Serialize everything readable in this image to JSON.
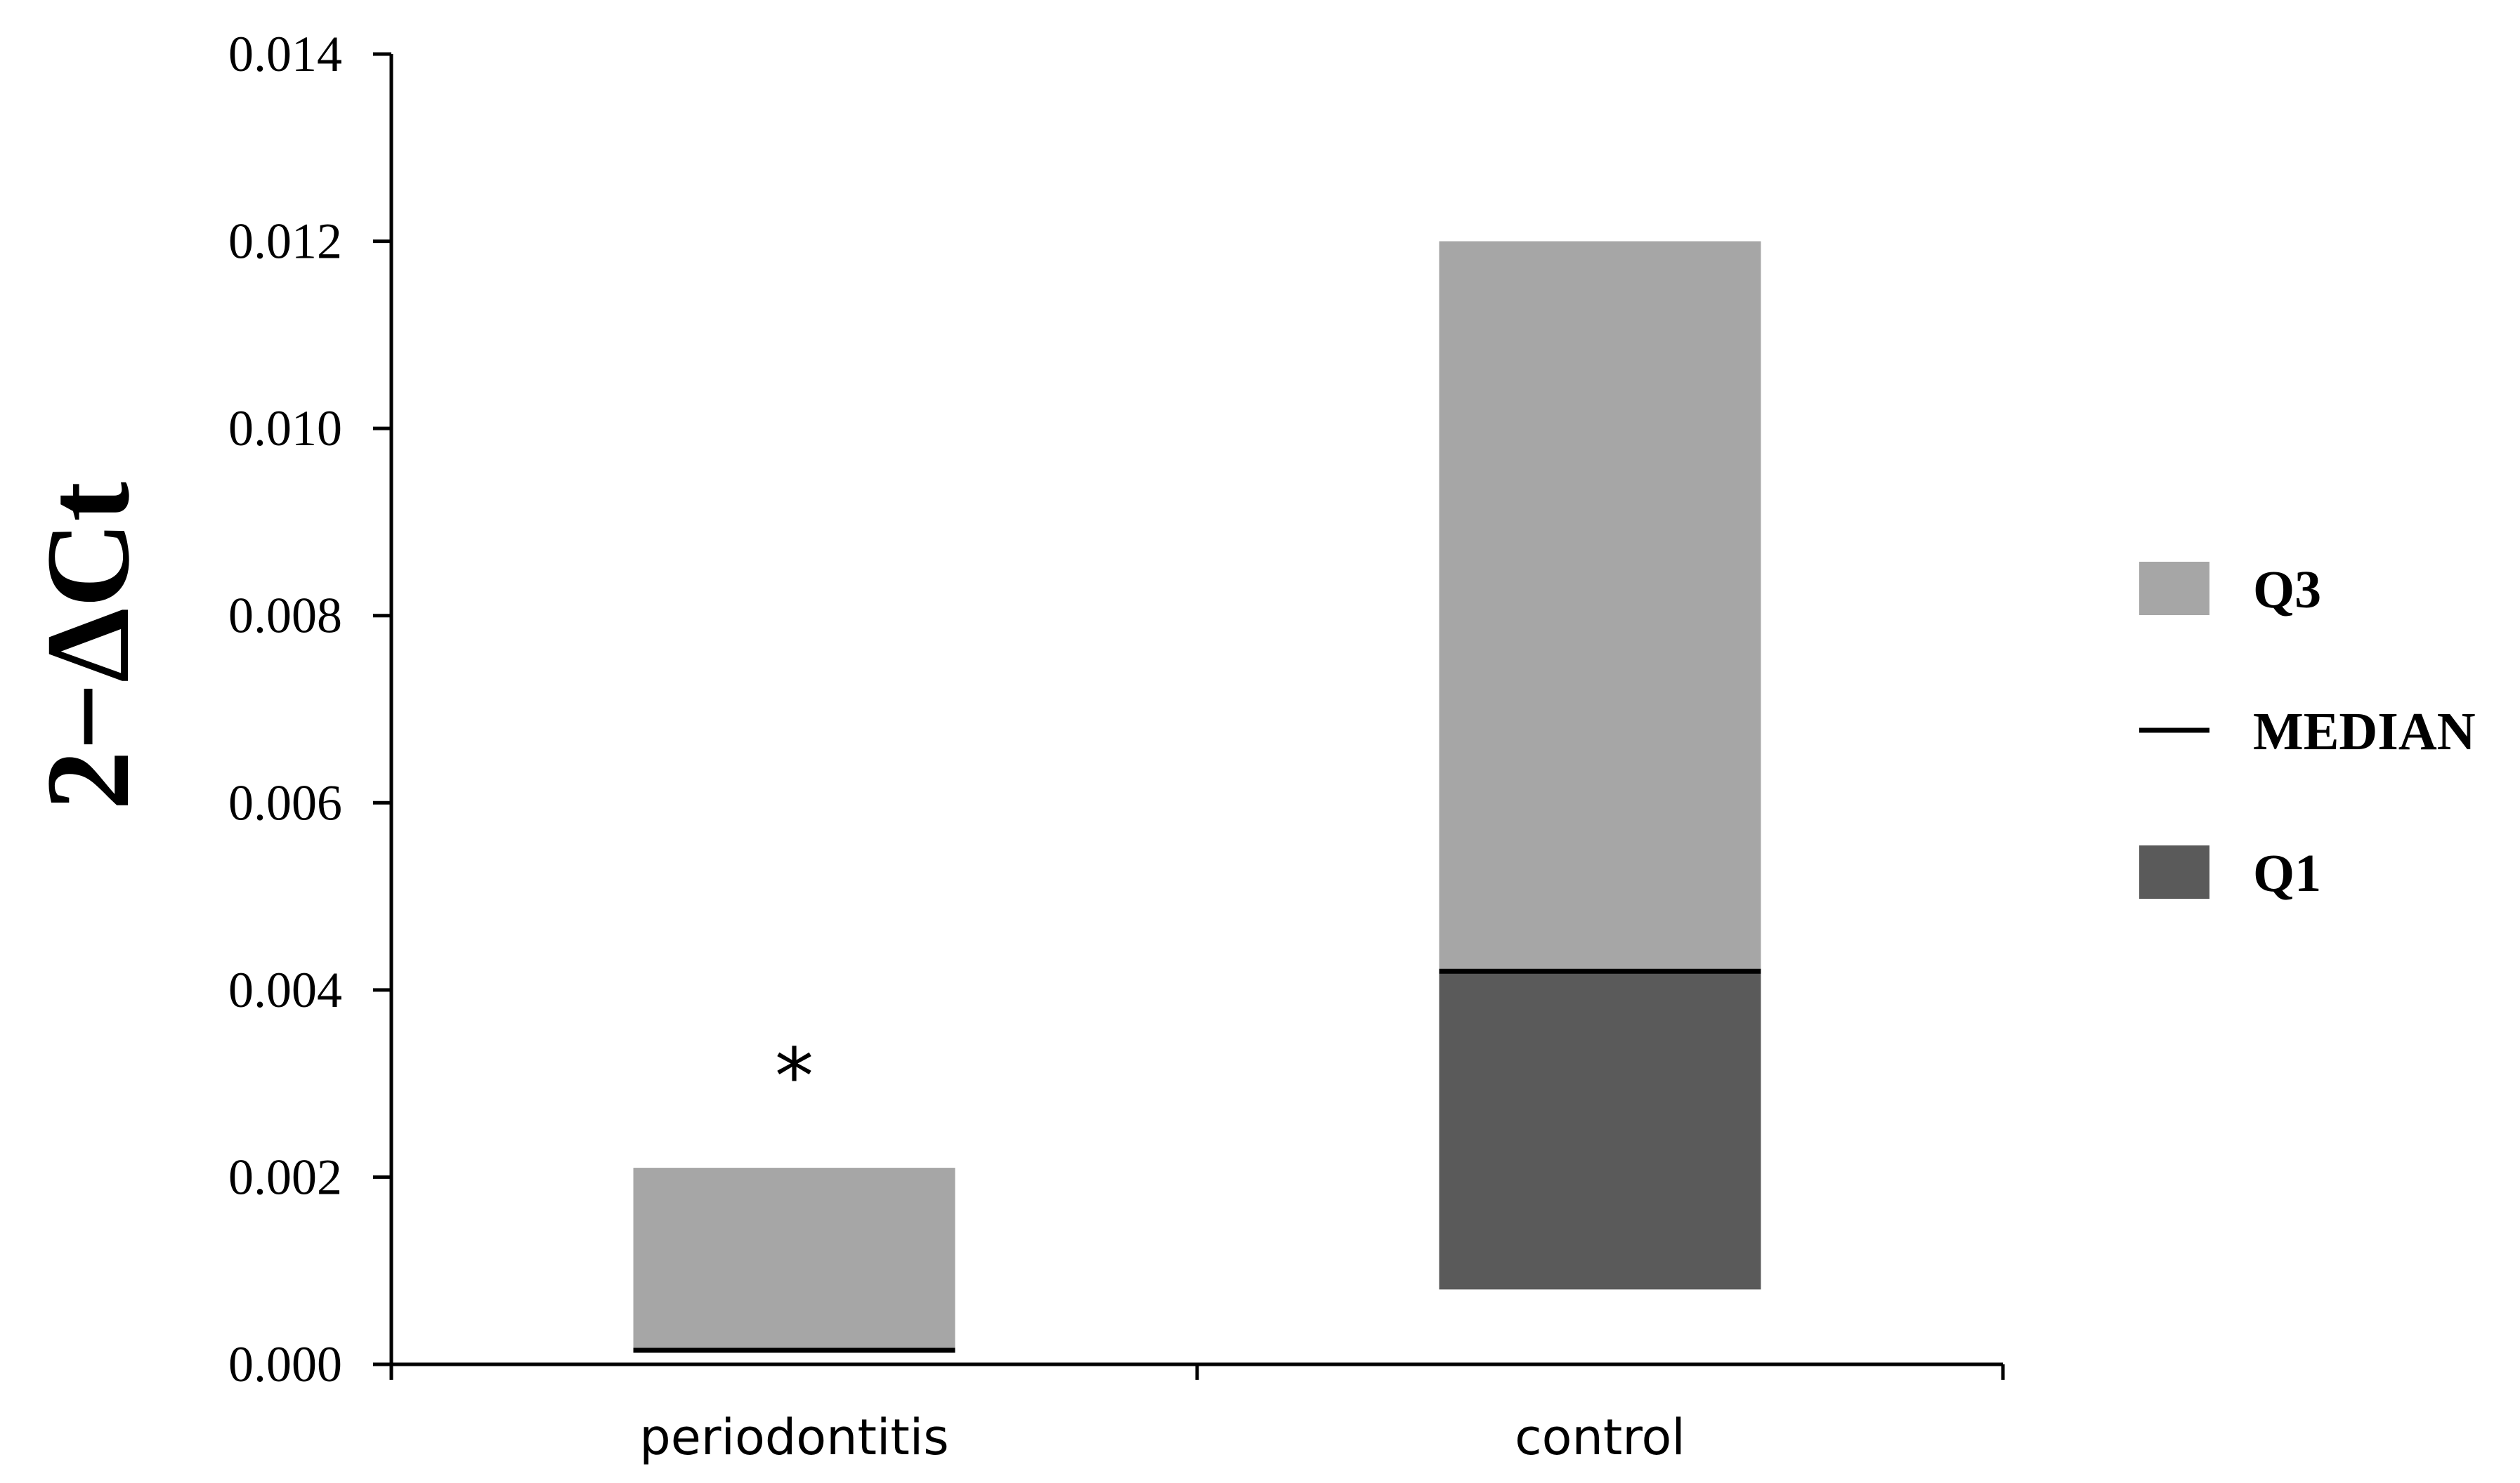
{
  "chart_data": {
    "type": "bar",
    "subtype": "floating-stacked (quartile box)",
    "title": "",
    "xlabel": "",
    "ylabel": "2−ΔCt",
    "ylim": [
      0,
      0.014
    ],
    "yticks": [
      "0.000",
      "0.002",
      "0.004",
      "0.006",
      "0.008",
      "0.010",
      "0.012",
      "0.014"
    ],
    "categories": [
      "periodontitis",
      "control"
    ],
    "series": [
      {
        "name": "Q1",
        "color": "#5a5a5a",
        "values": [
          0.00015,
          0.0008
        ]
      },
      {
        "name": "MEDIAN",
        "color": "#000000",
        "values": [
          0.00015,
          0.0042
        ]
      },
      {
        "name": "Q3",
        "color": "#a6a6a6",
        "values": [
          0.0021,
          0.012
        ]
      }
    ],
    "annotations": [
      {
        "text": "*",
        "category": "periodontitis"
      }
    ],
    "legend": {
      "position": "right",
      "items": [
        {
          "label": "Q3",
          "kind": "box",
          "color": "#a6a6a6"
        },
        {
          "label": "MEDIAN",
          "kind": "line",
          "color": "#000000"
        },
        {
          "label": "Q1",
          "kind": "box",
          "color": "#5a5a5a"
        }
      ]
    },
    "grid": false
  }
}
